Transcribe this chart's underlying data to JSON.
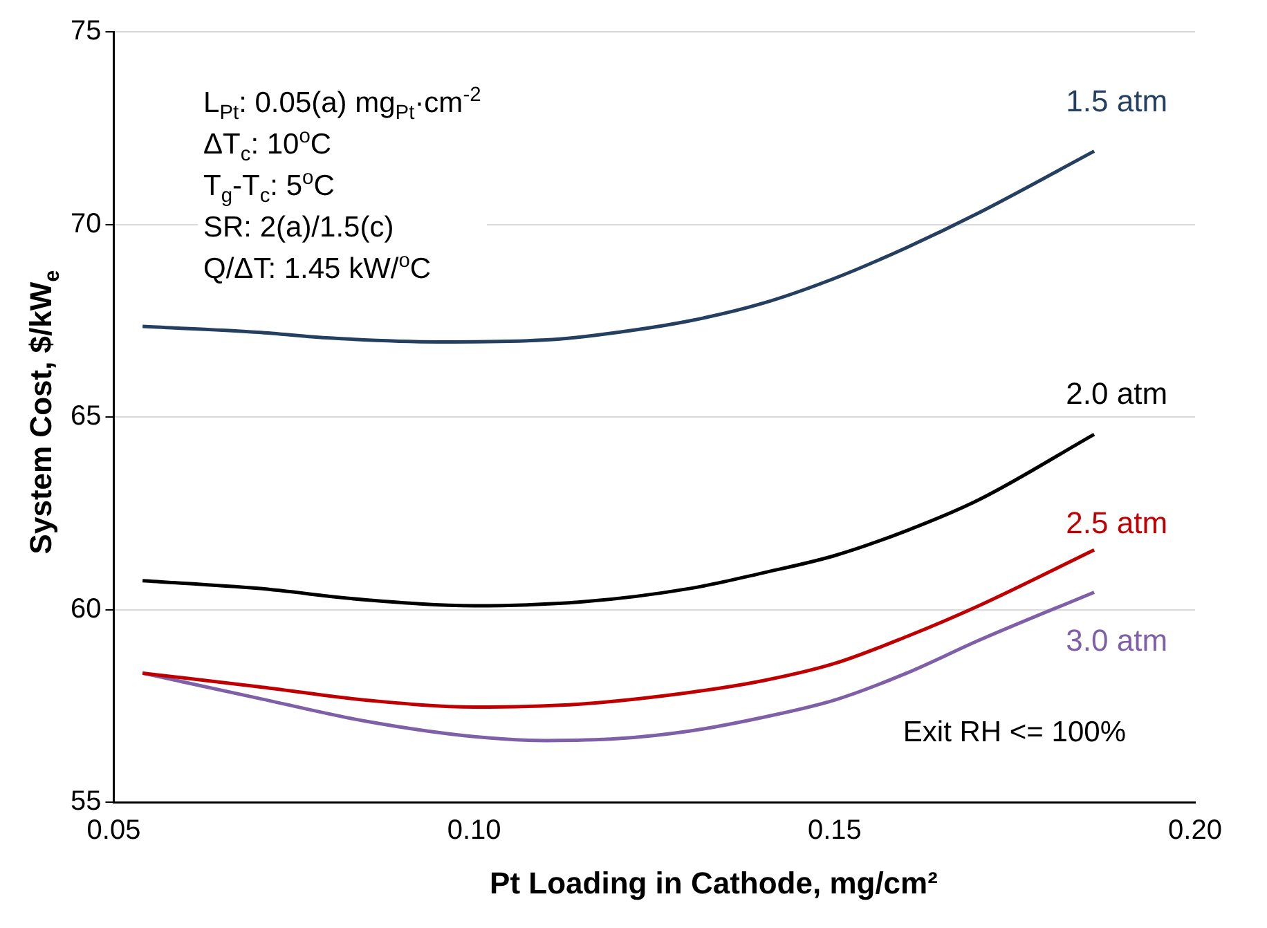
{
  "chart_data": {
    "type": "line",
    "xlabel": "Pt Loading in Cathode, mg/cm²",
    "ylabel": "System Cost, $/kW$_{e}$",
    "xlim": [
      0.05,
      0.2
    ],
    "xticks": [
      {
        "value": 0.05,
        "label": "0.05"
      },
      {
        "value": 0.1,
        "label": "0.10"
      },
      {
        "value": 0.15,
        "label": "0.15"
      },
      {
        "value": 0.2,
        "label": "0.20"
      }
    ],
    "ylim": [
      55,
      75
    ],
    "yticks": [
      55,
      60,
      65,
      70,
      75
    ],
    "grid": "y",
    "legend": false,
    "marker": "none",
    "line_style": "solid",
    "annotations": [
      "L$_{Pt}$:   0.05(a) mg$_{Pt}$·cm$^{-2}$",
      "ΔT$_{c}$: 10$^{o}$C",
      "T$_{g}$-T$_{c}$: 5$^{o}$C",
      "SR:  2(a)/1.5(c)",
      "Q/ΔT: 1.45 kW/$^{o}$C",
      "Exit RH <= 100%"
    ],
    "series": [
      {
        "name": "1.5 atm",
        "color": "#243f60",
        "x": [
          0.054,
          0.07,
          0.08,
          0.095,
          0.11,
          0.12,
          0.13,
          0.14,
          0.15,
          0.16,
          0.17,
          0.186
        ],
        "values": [
          67.35,
          67.2,
          67.05,
          66.95,
          67.0,
          67.2,
          67.5,
          67.95,
          68.6,
          69.4,
          70.3,
          71.9
        ]
      },
      {
        "name": "2.0 atm",
        "color": "#000000",
        "x": [
          0.054,
          0.07,
          0.085,
          0.1,
          0.115,
          0.13,
          0.14,
          0.15,
          0.16,
          0.17,
          0.186
        ],
        "values": [
          60.75,
          60.55,
          60.25,
          60.1,
          60.2,
          60.55,
          60.95,
          61.4,
          62.05,
          62.85,
          64.55
        ]
      },
      {
        "name": "2.5 atm",
        "color": "#c00000",
        "x": [
          0.054,
          0.07,
          0.085,
          0.1,
          0.115,
          0.13,
          0.14,
          0.15,
          0.16,
          0.17,
          0.186
        ],
        "values": [
          58.35,
          58.0,
          57.65,
          57.47,
          57.55,
          57.85,
          58.15,
          58.6,
          59.3,
          60.1,
          61.55
        ]
      },
      {
        "name": "3.0 atm",
        "color": "#7f5fa8",
        "x": [
          0.054,
          0.07,
          0.085,
          0.1,
          0.11,
          0.12,
          0.13,
          0.14,
          0.15,
          0.16,
          0.17,
          0.186
        ],
        "values": [
          58.35,
          57.7,
          57.1,
          56.7,
          56.6,
          56.65,
          56.85,
          57.2,
          57.65,
          58.35,
          59.2,
          60.45
        ]
      }
    ]
  }
}
